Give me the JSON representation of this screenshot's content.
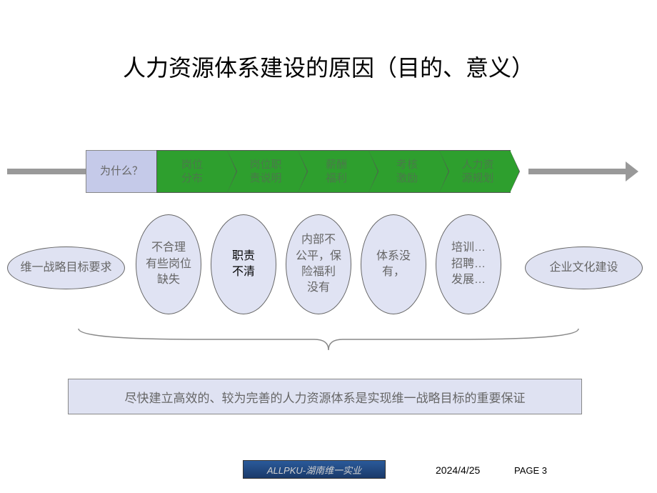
{
  "title": "人力资源体系建设的原因（目的、意义）",
  "process": {
    "first": "为什么？",
    "steps": [
      "岗位\n分布",
      "岗位职\n责说明",
      "薪酬\n福利",
      "考核\n激励",
      "人力资\n源规划"
    ]
  },
  "ellipses": {
    "left_wide": "维一战略目标要求",
    "right_wide": "企业文化建设",
    "tall": [
      "不合理\n有些岗位\n缺失",
      "职责\n不清",
      "内部不\n公平，保\n险福利\n没有",
      "体系没\n有，",
      "培训…\n招聘…\n发展…"
    ]
  },
  "conclusion": "尽快建立高效的、较为完善的人力资源体系是实现维一战略目标的重要保证",
  "footer": {
    "badge": "ALLPKU-湖南维一实业",
    "date": "2024/4/25",
    "page": "PAGE 3"
  },
  "colors": {
    "chevron_bg": "#2e9f2e",
    "first_box_bg": "#c5cae9",
    "ellipse_bg": "#e0e3f3",
    "arrow_gray": "#999999",
    "text_gray": "#666666",
    "badge_bg": "#1a3a6a"
  }
}
